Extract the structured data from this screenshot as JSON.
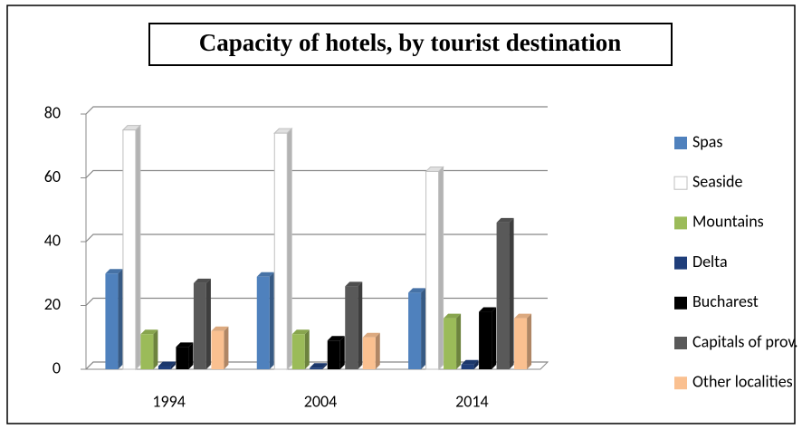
{
  "chart_data": {
    "type": "bar3d",
    "title": "Capacity of hotels, by tourist destination",
    "categories": [
      "1994",
      "2004",
      "2014"
    ],
    "series": [
      {
        "name": "Spas",
        "color": "#4f81bd",
        "values": [
          30,
          29,
          24
        ]
      },
      {
        "name": "Seaside",
        "color": "#ffffff",
        "values": [
          75,
          74,
          62
        ]
      },
      {
        "name": "Mountains",
        "color": "#9bbb59",
        "values": [
          11,
          11,
          16
        ]
      },
      {
        "name": "Delta",
        "color": "#1f3e7a",
        "values": [
          1,
          0.5,
          1.5
        ]
      },
      {
        "name": "Bucharest",
        "color": "#000000",
        "values": [
          7,
          9,
          18
        ]
      },
      {
        "name": "Capitals of prov.",
        "color": "#595959",
        "values": [
          27,
          26,
          46
        ]
      },
      {
        "name": "Other localities",
        "color": "#fac090",
        "values": [
          12,
          10,
          16
        ]
      }
    ],
    "ylim": [
      0,
      80
    ],
    "yticks": [
      0,
      20,
      40,
      60,
      80
    ],
    "grid": true,
    "legend": "right"
  }
}
